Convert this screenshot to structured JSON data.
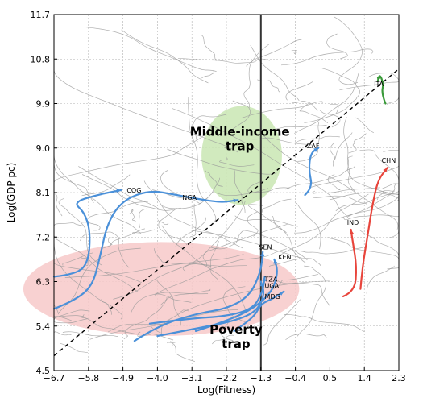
{
  "chart_data": {
    "type": "line",
    "title": "",
    "xlabel": "Log(Fitness)",
    "ylabel": "Log(GDP pc)",
    "xlim": [
      -6.7,
      2.3
    ],
    "ylim": [
      4.5,
      11.7
    ],
    "xticks": [
      "−6.7",
      "−5.8",
      "−4.9",
      "−4.0",
      "−3.1",
      "−2.2",
      "−1.3",
      "−0.4",
      "0.5",
      "1.4",
      "2.3"
    ],
    "yticks": [
      "4.5",
      "5.4",
      "6.3",
      "7.2",
      "8.1",
      "9.0",
      "9.9",
      "10.8",
      "11.7"
    ],
    "grid": true,
    "vertical_line_x": -1.3,
    "diagonal_reference": {
      "style": "dashed",
      "from": [
        -6.7,
        4.8
      ],
      "to": [
        2.3,
        10.6
      ]
    },
    "regions": [
      {
        "name": "Middle-income trap",
        "label_lines": [
          "Middle-income",
          "trap"
        ],
        "color": "#c9e6b3",
        "center": [
          -1.8,
          8.85
        ],
        "radius": [
          1.05,
          1.0
        ],
        "label_at": [
          -1.85,
          9.25
        ]
      },
      {
        "name": "Poverty trap",
        "label_lines": [
          "Poverty",
          "trap"
        ],
        "color": "#f7c9c9",
        "center": [
          -3.9,
          6.15
        ],
        "radius": [
          3.6,
          0.95
        ],
        "label_at": [
          -1.95,
          5.25
        ]
      }
    ],
    "series": [
      {
        "name": "COG",
        "color": "#4a90d9",
        "points": [
          [
            -6.7,
            6.4
          ],
          [
            -6.1,
            6.45
          ],
          [
            -5.8,
            6.7
          ],
          [
            -5.75,
            7.3
          ],
          [
            -5.9,
            7.7
          ],
          [
            -6.2,
            7.9
          ],
          [
            -5.6,
            8.05
          ],
          [
            -4.95,
            8.15
          ]
        ]
      },
      {
        "name": "NGA",
        "color": "#4a90d9",
        "points": [
          [
            -6.7,
            5.75
          ],
          [
            -6.2,
            5.9
          ],
          [
            -5.7,
            6.2
          ],
          [
            -5.5,
            6.8
          ],
          [
            -5.3,
            7.5
          ],
          [
            -4.9,
            7.95
          ],
          [
            -4.2,
            8.15
          ],
          [
            -3.5,
            8.05
          ],
          [
            -2.8,
            7.95
          ],
          [
            -2.3,
            7.9
          ],
          [
            -1.9,
            7.95
          ]
        ]
      },
      {
        "name": "SEN",
        "color": "#4a90d9",
        "points": [
          [
            -4.6,
            5.1
          ],
          [
            -4.0,
            5.4
          ],
          [
            -3.0,
            5.65
          ],
          [
            -2.2,
            5.75
          ],
          [
            -1.6,
            6.0
          ],
          [
            -1.3,
            6.5
          ],
          [
            -1.25,
            6.9
          ]
        ]
      },
      {
        "name": "KEN",
        "color": "#4a90d9",
        "points": [
          [
            -3.0,
            5.3
          ],
          [
            -2.2,
            5.5
          ],
          [
            -1.5,
            5.75
          ],
          [
            -1.0,
            6.1
          ],
          [
            -0.85,
            6.5
          ],
          [
            -0.95,
            6.75
          ]
        ]
      },
      {
        "name": "TZA",
        "color": "#4a90d9",
        "points": [
          [
            -4.2,
            5.45
          ],
          [
            -3.2,
            5.55
          ],
          [
            -2.2,
            5.6
          ],
          [
            -1.5,
            5.75
          ],
          [
            -1.25,
            6.1
          ],
          [
            -1.2,
            6.4
          ]
        ]
      },
      {
        "name": "UGA",
        "color": "#4a90d9",
        "points": [
          [
            -4.0,
            5.2
          ],
          [
            -3.0,
            5.35
          ],
          [
            -2.0,
            5.5
          ],
          [
            -1.4,
            5.7
          ],
          [
            -1.2,
            6.05
          ],
          [
            -1.3,
            6.3
          ]
        ]
      },
      {
        "name": "MDG",
        "color": "#4a90d9",
        "points": [
          [
            -2.0,
            5.3
          ],
          [
            -1.5,
            5.55
          ],
          [
            -1.3,
            5.85
          ],
          [
            -1.0,
            5.95
          ],
          [
            -0.7,
            6.1
          ]
        ]
      },
      {
        "name": "ZAF",
        "color": "#4a90d9",
        "points": [
          [
            -0.15,
            8.05
          ],
          [
            0.05,
            8.2
          ],
          [
            -0.05,
            8.55
          ],
          [
            0.0,
            8.9
          ],
          [
            0.2,
            9.0
          ]
        ]
      },
      {
        "name": "ITA",
        "color": "#3a9a3a",
        "points": [
          [
            1.95,
            9.9
          ],
          [
            1.85,
            10.1
          ],
          [
            1.9,
            10.3
          ],
          [
            1.8,
            10.5
          ],
          [
            1.75,
            10.35
          ]
        ]
      },
      {
        "name": "IND",
        "color": "#e8453c",
        "points": [
          [
            0.85,
            6.0
          ],
          [
            1.15,
            6.1
          ],
          [
            1.2,
            6.6
          ],
          [
            1.1,
            7.1
          ],
          [
            1.05,
            7.35
          ]
        ]
      },
      {
        "name": "CHN",
        "color": "#e8453c",
        "points": [
          [
            1.3,
            6.15
          ],
          [
            1.35,
            6.6
          ],
          [
            1.5,
            7.3
          ],
          [
            1.6,
            7.8
          ],
          [
            1.75,
            8.35
          ],
          [
            2.0,
            8.6
          ]
        ]
      }
    ],
    "country_labels": [
      {
        "text": "COG",
        "at": [
          -4.8,
          8.1
        ]
      },
      {
        "text": "NGA",
        "at": [
          -3.35,
          7.95
        ]
      },
      {
        "text": "SEN",
        "at": [
          -1.35,
          6.95
        ]
      },
      {
        "text": "KEN",
        "at": [
          -0.85,
          6.75
        ]
      },
      {
        "text": "TZA",
        "at": [
          -1.2,
          6.3
        ]
      },
      {
        "text": "UGA",
        "at": [
          -1.2,
          6.17
        ]
      },
      {
        "text": "MDG",
        "at": [
          -1.2,
          5.95
        ]
      },
      {
        "text": "ZAF",
        "at": [
          -0.1,
          9.0
        ]
      },
      {
        "text": "ITA",
        "at": [
          1.65,
          10.25
        ]
      },
      {
        "text": "IND",
        "at": [
          0.95,
          7.45
        ]
      },
      {
        "text": "CHN",
        "at": [
          1.85,
          8.7
        ]
      }
    ],
    "background_trajectories_color": "#9a9a9a"
  }
}
